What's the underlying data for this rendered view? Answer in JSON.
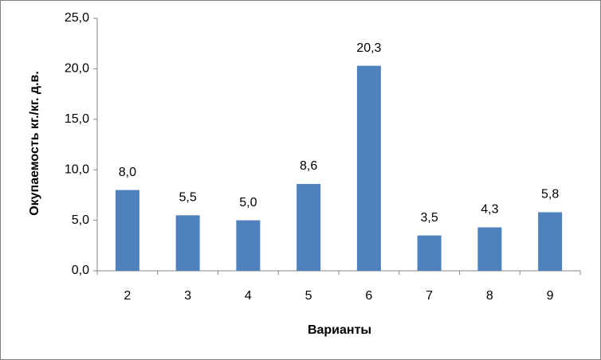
{
  "chart_data": {
    "type": "bar",
    "x_label": "Варианты",
    "y_label": "Окупаемость кг./кг. д.в.",
    "categories": [
      "2",
      "3",
      "4",
      "5",
      "6",
      "7",
      "8",
      "9"
    ],
    "values": [
      8.0,
      5.5,
      5.0,
      8.6,
      20.3,
      3.5,
      4.3,
      5.8
    ],
    "value_labels": [
      "8,0",
      "5,5",
      "5,0",
      "8,6",
      "20,3",
      "3,5",
      "4,3",
      "5,8"
    ],
    "color": "#4f81bd",
    "ylim": [
      0,
      25
    ],
    "yticks": [
      {
        "value": 0,
        "label": "0,0"
      },
      {
        "value": 5,
        "label": "5,0"
      },
      {
        "value": 10,
        "label": "10,0"
      },
      {
        "value": 15,
        "label": "15,0"
      },
      {
        "value": 20,
        "label": "20,0"
      },
      {
        "value": 25,
        "label": "25,0"
      }
    ],
    "grid": false
  }
}
